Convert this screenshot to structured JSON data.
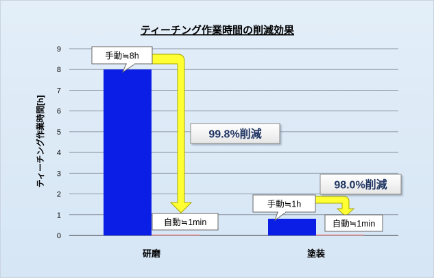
{
  "chart_data": {
    "type": "bar",
    "title": "ティーチング作業時間の削減効果",
    "ylabel": "ティーチング作業時間[h]",
    "xlabel": "",
    "categories": [
      "研磨",
      "塗装"
    ],
    "series": [
      {
        "name": "手動",
        "values": [
          8,
          0.8
        ]
      },
      {
        "name": "自動",
        "values": [
          0.0167,
          0.0167
        ]
      }
    ],
    "ylim": [
      0,
      9
    ],
    "yticks": [
      0,
      1,
      2,
      3,
      4,
      5,
      6,
      7,
      8,
      9
    ],
    "grid": true,
    "callouts": [
      {
        "category": "研磨",
        "series": "手動",
        "label": "手動≒8h"
      },
      {
        "category": "研磨",
        "series": "自動",
        "label": "自動≒1min"
      },
      {
        "category": "塗装",
        "series": "手動",
        "label": "手動≒1h"
      },
      {
        "category": "塗装",
        "series": "自動",
        "label": "自動≒1min"
      }
    ],
    "reductions": [
      {
        "category": "研磨",
        "label": "99.8%削減"
      },
      {
        "category": "塗装",
        "label": "98.0%削減"
      }
    ]
  },
  "colors": {
    "manual_bar": "#0a1ee6",
    "auto_bar": "#f4a0a0",
    "arrow": "#ffff33",
    "arrow_outline": "#a7a700",
    "reduction_text": "#1f3563",
    "background": "#dae8f6"
  }
}
